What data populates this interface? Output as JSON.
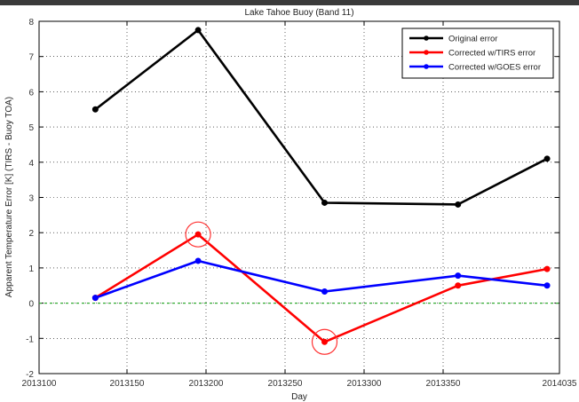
{
  "chart_data": {
    "type": "line",
    "title": "Lake Tahoe Buoy (Band 11)",
    "xlabel": "Day",
    "ylabel": "Apparent Temperature Error [K] (TIRS - Buoy TOA)",
    "xlim": [
      2013100,
      2014035
    ],
    "ylim": [
      -2,
      8
    ],
    "xticks": [
      "2013100",
      "2013150",
      "2013200",
      "2013250",
      "2013300",
      "2013350",
      "2014035"
    ],
    "yticks": [
      -2,
      -1,
      0,
      1,
      2,
      3,
      4,
      5,
      6,
      7,
      8
    ],
    "x": [
      2013132,
      2013195,
      2013275,
      2013356,
      2013392
    ],
    "series": [
      {
        "name": "Original error",
        "color": "#000000",
        "values": [
          5.5,
          7.75,
          2.85,
          2.8,
          4.1
        ]
      },
      {
        "name": "Corrected w/TIRS error",
        "color": "#ff0000",
        "values": [
          0.15,
          1.95,
          -1.1,
          0.5,
          0.97
        ]
      },
      {
        "name": "Corrected w/GOES error",
        "color": "#0000ff",
        "values": [
          0.15,
          1.2,
          0.33,
          0.78,
          0.5
        ]
      }
    ],
    "reference_line": {
      "y": 0,
      "color": "#33aa33",
      "style": "dashed"
    },
    "highlight_circles": [
      {
        "series": "Corrected w/TIRS error",
        "x": 2013195,
        "y": 1.95
      },
      {
        "series": "Corrected w/TIRS error",
        "x": 2013275,
        "y": -1.1
      }
    ],
    "legend_position": "top-right",
    "grid": true
  }
}
